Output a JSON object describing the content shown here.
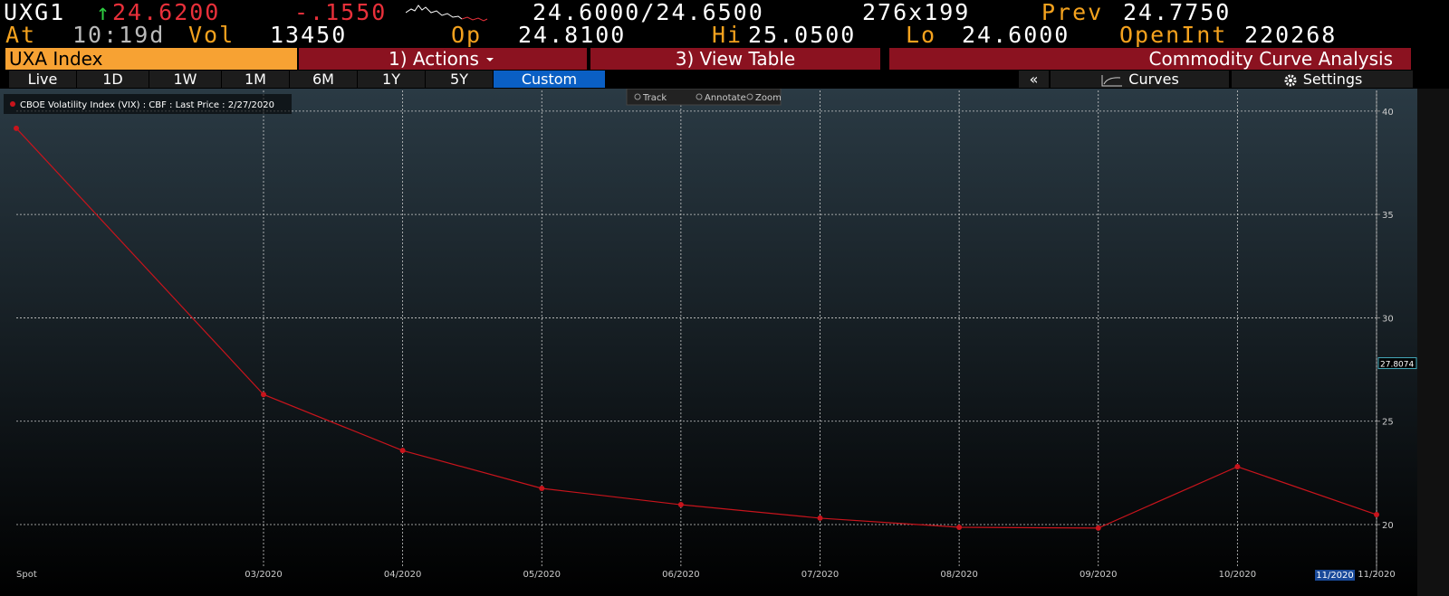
{
  "header": {
    "ticker": "UXG1",
    "direction": "↑",
    "last": "24.6200",
    "change": "-.1550",
    "bid_ask": "24.6000/24.6500",
    "size": "276x199",
    "prev_label": "Prev",
    "prev": "24.7750",
    "at_label": "At",
    "time": "10:19d",
    "vol_label": "Vol",
    "vol": "13450",
    "open_label": "Op",
    "open": "24.8100",
    "high_label": "Hi",
    "high": "25.0500",
    "low_label": "Lo",
    "low": "24.6000",
    "open_int_label": "OpenInt",
    "open_int": "220268"
  },
  "toolbar": {
    "security": "UXA Index",
    "actions": "1) Actions",
    "view_table": "3) View Table",
    "function": "Commodity Curve Analysis"
  },
  "tabs": [
    "Live",
    "1D",
    "1W",
    "1M",
    "6M",
    "1Y",
    "5Y",
    "Custom"
  ],
  "active_tab": 7,
  "side_buttons": [
    "«",
    "Curves",
    "Settings"
  ],
  "chart_tools": [
    "Track",
    "Annotate",
    "Zoom"
  ],
  "chart_data": {
    "type": "line",
    "categories": [
      "Spot",
      "03/2020",
      "04/2020",
      "05/2020",
      "06/2020",
      "07/2020",
      "08/2020",
      "09/2020",
      "10/2020",
      "11/2020"
    ],
    "series": [
      {
        "name": "CBOE Volatility Index (VIX) : CBF : Last Price : 2/27/2020",
        "color": "#c8141c",
        "values": [
          39.17,
          26.29,
          23.58,
          21.75,
          20.96,
          20.31,
          19.87,
          19.83,
          22.8,
          20.48
        ]
      }
    ],
    "ylim": [
      17.9,
      41
    ],
    "yticks": [
      20,
      25,
      30,
      35,
      40
    ],
    "grid": true,
    "last_price": 27.8074,
    "crosshair_label": "11/2020"
  }
}
